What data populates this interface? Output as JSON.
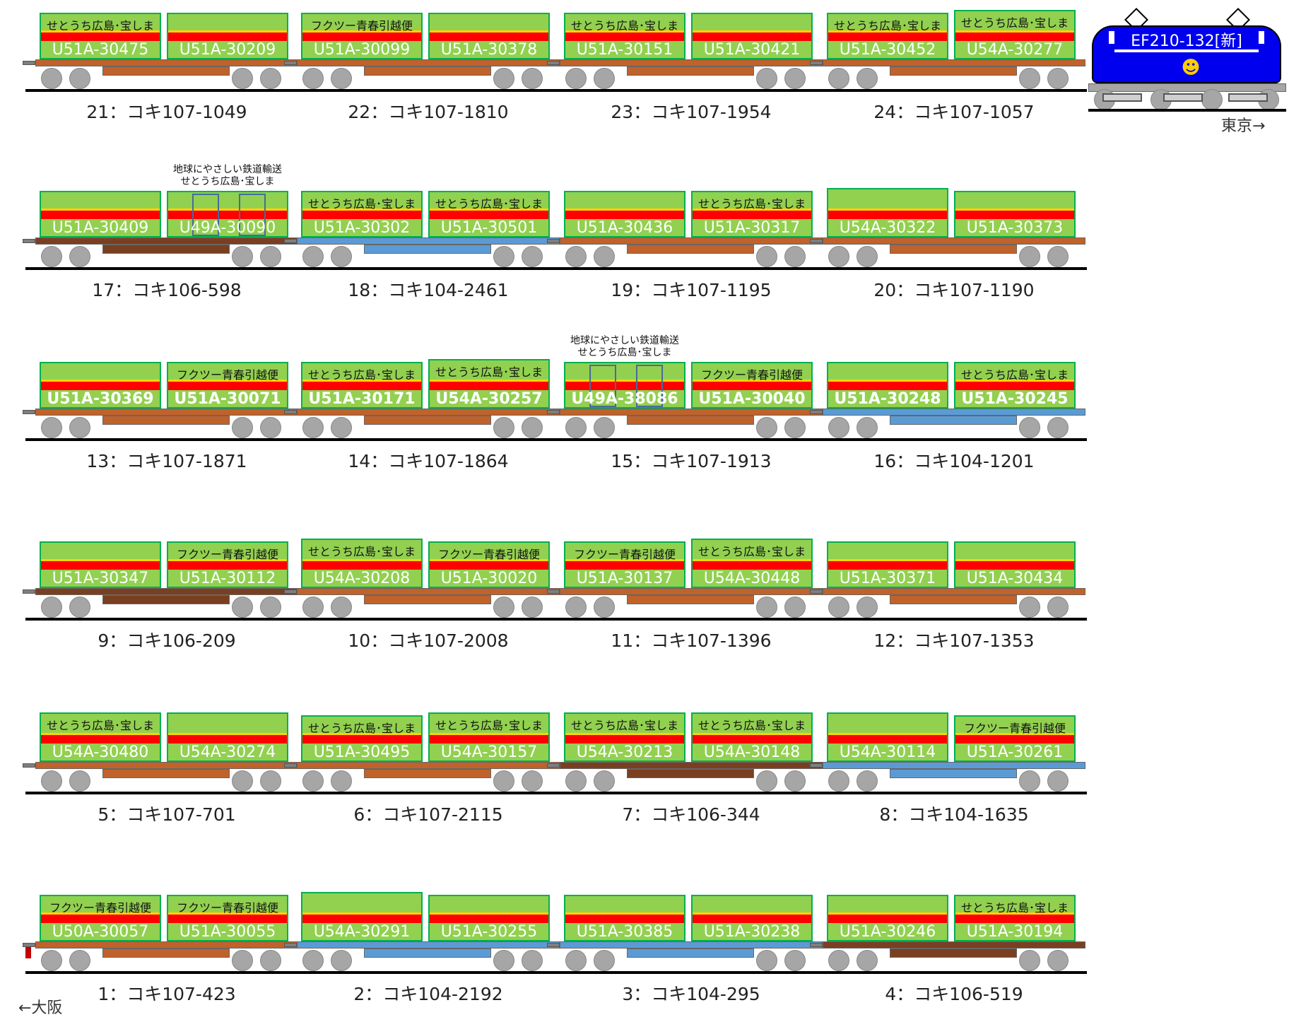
{
  "locomotive": {
    "name": "EF210-132[新]",
    "direction_label": "東京→"
  },
  "origin_label": "←大阪",
  "rows": [
    {
      "cars": [
        {
          "label": "21：コキ107-1049",
          "frame": "brown",
          "containers": [
            {
              "number": "U51A-30475",
              "slogan": "せとうち広島･宝しま",
              "style": "low"
            },
            {
              "number": "U51A-30209",
              "slogan": "",
              "style": "low"
            }
          ]
        },
        {
          "label": "22：コキ107-1810",
          "frame": "brown",
          "containers": [
            {
              "number": "U51A-30099",
              "slogan": "フクツー青春引越便",
              "style": "low"
            },
            {
              "number": "U51A-30378",
              "slogan": "",
              "style": "low"
            }
          ]
        },
        {
          "label": "23：コキ107-1954",
          "frame": "brown",
          "containers": [
            {
              "number": "U51A-30151",
              "slogan": "せとうち広島･宝しま",
              "style": "low"
            },
            {
              "number": "U51A-30421",
              "slogan": "",
              "style": "low"
            }
          ]
        },
        {
          "label": "24：コキ107-1057",
          "frame": "brown",
          "containers": [
            {
              "number": "U51A-30452",
              "slogan": "せとうち広島･宝しま",
              "style": "low"
            },
            {
              "number": "U54A-30277",
              "slogan": "せとうち広島･宝しま",
              "style": "tall"
            }
          ]
        }
      ]
    },
    {
      "cars": [
        {
          "label": "17：コキ106-598",
          "frame": "dark",
          "containers": [
            {
              "number": "U51A-30409",
              "slogan": "",
              "style": "low"
            },
            {
              "number": "U49A-30090",
              "slogan": "",
              "style": "doors",
              "caption_lines": [
                "地球にやさしい鉄道輸送",
                "せとうち広島･宝しま"
              ]
            }
          ]
        },
        {
          "label": "18：コキ104-2461",
          "frame": "blue",
          "containers": [
            {
              "number": "U51A-30302",
              "slogan": "せとうち広島･宝しま",
              "style": "low"
            },
            {
              "number": "U51A-30501",
              "slogan": "せとうち広島･宝しま",
              "style": "low"
            }
          ]
        },
        {
          "label": "19：コキ107-1195",
          "frame": "brown",
          "containers": [
            {
              "number": "U51A-30436",
              "slogan": "",
              "style": "low"
            },
            {
              "number": "U51A-30317",
              "slogan": "せとうち広島･宝しま",
              "style": "low"
            }
          ]
        },
        {
          "label": "20：コキ107-1190",
          "frame": "brown",
          "containers": [
            {
              "number": "U54A-30322",
              "slogan": "",
              "style": "tall"
            },
            {
              "number": "U51A-30373",
              "slogan": "",
              "style": "low"
            }
          ]
        }
      ]
    },
    {
      "cars": [
        {
          "label": "13：コキ107-1871",
          "frame": "brown",
          "containers": [
            {
              "number": "U51A-30369",
              "slogan": "",
              "style": "low",
              "bold": true
            },
            {
              "number": "U51A-30071",
              "slogan": "フクツー青春引越便",
              "style": "low",
              "bold": true
            }
          ]
        },
        {
          "label": "14：コキ107-1864",
          "frame": "brown",
          "containers": [
            {
              "number": "U51A-30171",
              "slogan": "せとうち広島･宝しま",
              "style": "low",
              "bold": true
            },
            {
              "number": "U54A-30257",
              "slogan": "せとうち広島･宝しま",
              "style": "tall",
              "bold": true
            }
          ]
        },
        {
          "label": "15：コキ107-1913",
          "frame": "brown",
          "containers": [
            {
              "number": "U49A-38086",
              "slogan": "",
              "style": "doors",
              "bold": true,
              "caption_lines": [
                "地球にやさしい鉄道輸送",
                "せとうち広島･宝しま"
              ]
            },
            {
              "number": "U51A-30040",
              "slogan": "フクツー青春引越便",
              "style": "low",
              "bold": true
            }
          ]
        },
        {
          "label": "16：コキ104-1201",
          "frame": "blue",
          "containers": [
            {
              "number": "U51A-30248",
              "slogan": "",
              "style": "low",
              "bold": true
            },
            {
              "number": "U51A-30245",
              "slogan": "せとうち広島･宝しま",
              "style": "low",
              "bold": true
            }
          ]
        }
      ]
    },
    {
      "cars": [
        {
          "label": "9：コキ106-209",
          "frame": "dark",
          "containers": [
            {
              "number": "U51A-30347",
              "slogan": "",
              "style": "low"
            },
            {
              "number": "U51A-30112",
              "slogan": "フクツー青春引越便",
              "style": "low"
            }
          ]
        },
        {
          "label": "10：コキ107-2008",
          "frame": "brown",
          "containers": [
            {
              "number": "U54A-30208",
              "slogan": "せとうち広島･宝しま",
              "style": "tall"
            },
            {
              "number": "U51A-30020",
              "slogan": "フクツー青春引越便",
              "style": "low"
            }
          ]
        },
        {
          "label": "11：コキ107-1396",
          "frame": "brown",
          "containers": [
            {
              "number": "U51A-30137",
              "slogan": "フクツー青春引越便",
              "style": "low"
            },
            {
              "number": "U54A-30448",
              "slogan": "せとうち広島･宝しま",
              "style": "tall"
            }
          ]
        },
        {
          "label": "12：コキ107-1353",
          "frame": "brown",
          "containers": [
            {
              "number": "U51A-30371",
              "slogan": "",
              "style": "low"
            },
            {
              "number": "U51A-30434",
              "slogan": "",
              "style": "low"
            }
          ]
        }
      ]
    },
    {
      "cars": [
        {
          "label": "5：コキ107-701",
          "frame": "brown",
          "containers": [
            {
              "number": "U54A-30480",
              "slogan": "せとうち広島･宝しま",
              "style": "tall"
            },
            {
              "number": "U54A-30274",
              "slogan": "",
              "style": "tall"
            }
          ]
        },
        {
          "label": "6：コキ107-2115",
          "frame": "brown",
          "containers": [
            {
              "number": "U51A-30495",
              "slogan": "せとうち広島･宝しま",
              "style": "low"
            },
            {
              "number": "U54A-30157",
              "slogan": "せとうち広島･宝しま",
              "style": "tall"
            }
          ]
        },
        {
          "label": "7：コキ106-344",
          "frame": "dark",
          "containers": [
            {
              "number": "U54A-30213",
              "slogan": "せとうち広島･宝しま",
              "style": "tall"
            },
            {
              "number": "U54A-30148",
              "slogan": "せとうち広島･宝しま",
              "style": "tall"
            }
          ]
        },
        {
          "label": "8：コキ104-1635",
          "frame": "blue",
          "containers": [
            {
              "number": "U54A-30114",
              "slogan": "",
              "style": "tall"
            },
            {
              "number": "U51A-30261",
              "slogan": "フクツー青春引越便",
              "style": "low"
            }
          ]
        }
      ]
    },
    {
      "cars": [
        {
          "label": "1：コキ107-423",
          "frame": "brown",
          "containers": [
            {
              "number": "U50A-30057",
              "slogan": "フクツー青春引越便",
              "style": "low"
            },
            {
              "number": "U51A-30055",
              "slogan": "フクツー青春引越便",
              "style": "low"
            }
          ]
        },
        {
          "label": "2：コキ104-2192",
          "frame": "blue",
          "containers": [
            {
              "number": "U54A-30291",
              "slogan": "",
              "style": "tall"
            },
            {
              "number": "U51A-30255",
              "slogan": "",
              "style": "low"
            }
          ]
        },
        {
          "label": "3：コキ104-295",
          "frame": "blue",
          "containers": [
            {
              "number": "U51A-30385",
              "slogan": "",
              "style": "low"
            },
            {
              "number": "U51A-30238",
              "slogan": "",
              "style": "low"
            }
          ]
        },
        {
          "label": "4：コキ106-519",
          "frame": "dark",
          "containers": [
            {
              "number": "U51A-30246",
              "slogan": "",
              "style": "low"
            },
            {
              "number": "U51A-30194",
              "slogan": "せとうち広島･宝しま",
              "style": "low"
            }
          ]
        }
      ]
    }
  ]
}
